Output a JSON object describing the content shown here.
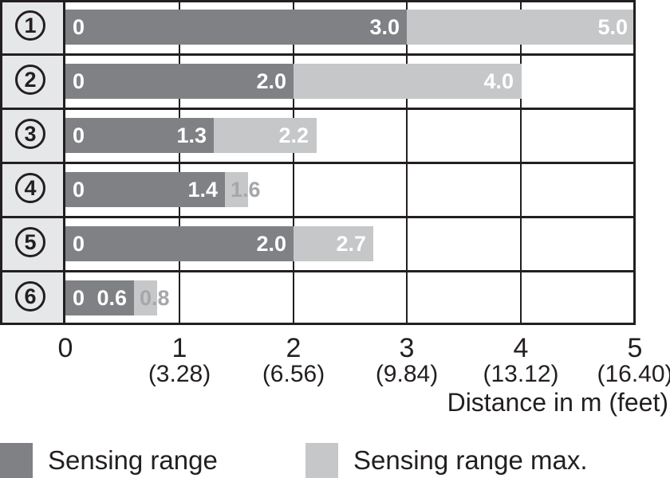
{
  "colors": {
    "sensing_range": "#808184",
    "sensing_range_max": "#c6c7c9",
    "outline": "#231f20",
    "row_header_bg": "#e6e7e8",
    "bar_label": "#ffffff",
    "overflow_label": "#a5a7aa"
  },
  "chart_data": {
    "type": "bar",
    "orientation": "horizontal-stacked",
    "title": "",
    "xlabel": "Distance in m (feet)",
    "xlim": [
      0,
      5
    ],
    "grid": true,
    "x_ticks": [
      {
        "m": "0",
        "feet": ""
      },
      {
        "m": "1",
        "feet": "(3.28)"
      },
      {
        "m": "2",
        "feet": "(6.56)"
      },
      {
        "m": "3",
        "feet": "(9.84)"
      },
      {
        "m": "4",
        "feet": "(13.12)"
      },
      {
        "m": "5",
        "feet": "(16.40)"
      }
    ],
    "legend": [
      {
        "label": "Sensing range",
        "color": "#808184"
      },
      {
        "label": "Sensing range max.",
        "color": "#c6c7c9"
      }
    ],
    "rows": [
      {
        "id": "1",
        "zero_label": "0",
        "sensing_range_m": 3.0,
        "sensing_range_label": "3.0",
        "sensing_range_max_m": 5.0,
        "sensing_range_max_label": "5.0",
        "max_label_style": "inside"
      },
      {
        "id": "2",
        "zero_label": "0",
        "sensing_range_m": 2.0,
        "sensing_range_label": "2.0",
        "sensing_range_max_m": 4.0,
        "sensing_range_max_label": "4.0",
        "max_label_style": "inside"
      },
      {
        "id": "3",
        "zero_label": "0",
        "sensing_range_m": 1.3,
        "sensing_range_label": "1.3",
        "sensing_range_max_m": 2.2,
        "sensing_range_max_label": "2.2",
        "max_label_style": "inside"
      },
      {
        "id": "4",
        "zero_label": "0",
        "sensing_range_m": 1.4,
        "sensing_range_label": "1.4",
        "sensing_range_max_m": 1.6,
        "sensing_range_max_label": "1.6",
        "max_label_style": "overflow"
      },
      {
        "id": "5",
        "zero_label": "0",
        "sensing_range_m": 2.0,
        "sensing_range_label": "2.0",
        "sensing_range_max_m": 2.7,
        "sensing_range_max_label": "2.7",
        "max_label_style": "inside"
      },
      {
        "id": "6",
        "zero_label": "0",
        "sensing_range_m": 0.6,
        "sensing_range_label": "0.6",
        "sensing_range_max_m": 0.8,
        "sensing_range_max_label": "0.8",
        "max_label_style": "overflow"
      }
    ]
  }
}
